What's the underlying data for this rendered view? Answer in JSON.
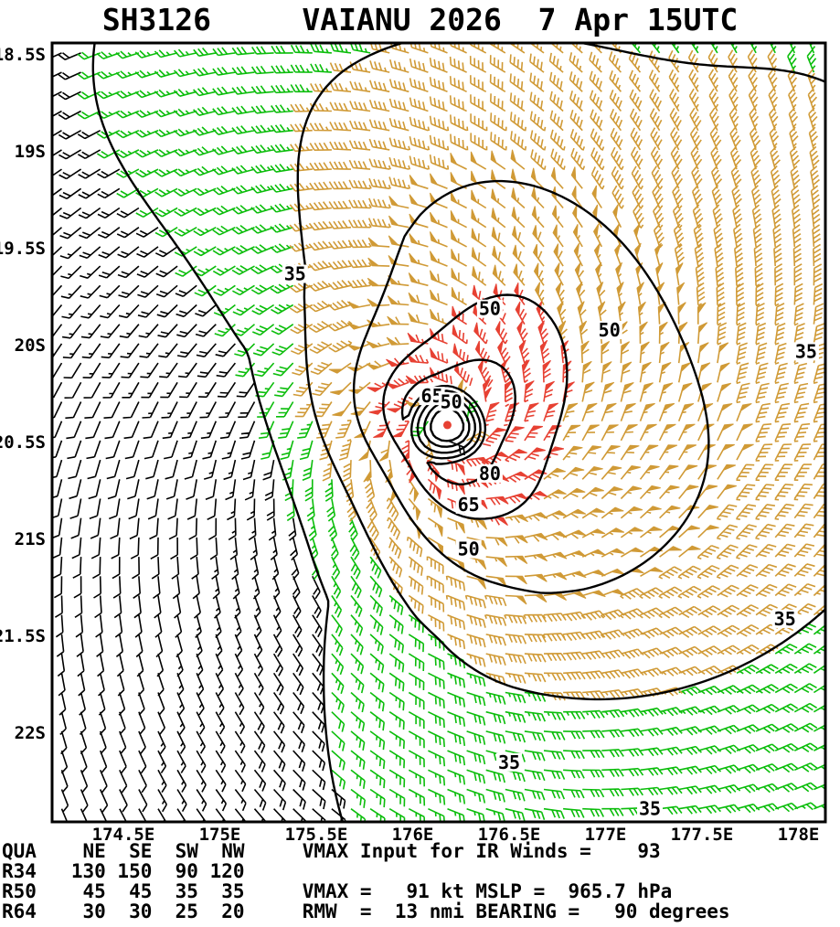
{
  "title": "SH3126     VAIANU 2026  7 Apr 15UTC",
  "chart_data": {
    "type": "wind-barb-map",
    "storm_id": "SH3126",
    "storm_name": "VAIANU",
    "season": "2026",
    "valid_time": "7 Apr 15UTC",
    "x_axis": {
      "ticks": [
        {
          "lon": 174.5,
          "label": "174.5E"
        },
        {
          "lon": 175.0,
          "label": "175E"
        },
        {
          "lon": 175.5,
          "label": "175.5E"
        },
        {
          "lon": 176.0,
          "label": "176E"
        },
        {
          "lon": 176.5,
          "label": "176.5E"
        },
        {
          "lon": 177.0,
          "label": "177E"
        },
        {
          "lon": 177.5,
          "label": "177.5E"
        },
        {
          "lon": 178.0,
          "label": "178E"
        }
      ]
    },
    "y_axis": {
      "ticks": [
        {
          "lat": -18.5,
          "label": "18.5S"
        },
        {
          "lat": -19.0,
          "label": "19S"
        },
        {
          "lat": -19.5,
          "label": "19.5S"
        },
        {
          "lat": -20.0,
          "label": "20S"
        },
        {
          "lat": -20.5,
          "label": "20.5S"
        },
        {
          "lat": -21.0,
          "label": "21S"
        },
        {
          "lat": -21.5,
          "label": "21.5S"
        },
        {
          "lat": -22.0,
          "label": "22S"
        }
      ]
    },
    "center": {
      "lon": 176.18,
      "lat": -20.41
    },
    "vmax_kt": 91,
    "vmax_ir_input_kt": 93,
    "mslp_hpa": 965.7,
    "rmw_nmi": 13,
    "bearing_deg": 90,
    "wind_radii": {
      "quadrants": [
        "NE",
        "SE",
        "SW",
        "NW"
      ],
      "R34": [
        130,
        150,
        90,
        120
      ],
      "R50": [
        45,
        45,
        35,
        35
      ],
      "R64": [
        30,
        30,
        25,
        20
      ]
    },
    "contour_levels_kt": [
      35,
      50,
      65,
      80
    ],
    "speed_band_thresholds_kt": [
      22,
      35,
      65
    ],
    "contour_labels": [
      {
        "value": 35,
        "lon": 175.39,
        "lat": -19.63
      },
      {
        "value": 50,
        "lon": 176.4,
        "lat": -19.81
      },
      {
        "value": 50,
        "lon": 177.02,
        "lat": -19.92
      },
      {
        "value": 65,
        "lon": 176.1,
        "lat": -20.26
      },
      {
        "value": 50,
        "lon": 176.2,
        "lat": -20.29
      },
      {
        "value": 80,
        "lon": 176.4,
        "lat": -20.66
      },
      {
        "value": 65,
        "lon": 176.29,
        "lat": -20.82
      },
      {
        "value": 50,
        "lon": 176.29,
        "lat": -21.05
      },
      {
        "value": 35,
        "lon": 178.04,
        "lat": -20.03
      },
      {
        "value": 35,
        "lon": 177.93,
        "lat": -21.41
      },
      {
        "value": 35,
        "lon": 176.5,
        "lat": -22.15
      },
      {
        "value": 35,
        "lon": 177.23,
        "lat": -22.39
      }
    ],
    "barb_colors": {
      "outer": "#000000",
      "moderate": "#0bbd0b",
      "strong": "#d09a36",
      "core": "#e74133"
    }
  },
  "footer": {
    "lines": [
      "QUA    NE  SE  SW  NW     VMAX Input for IR Winds =    93",
      "R34   130 150  90 120",
      "R50    45  45  35  35     VMAX =   91 kt MSLP =  965.7 hPa",
      "R64    30  30  25  20     RMW  =  13 nmi BEARING =   90 degrees"
    ]
  }
}
